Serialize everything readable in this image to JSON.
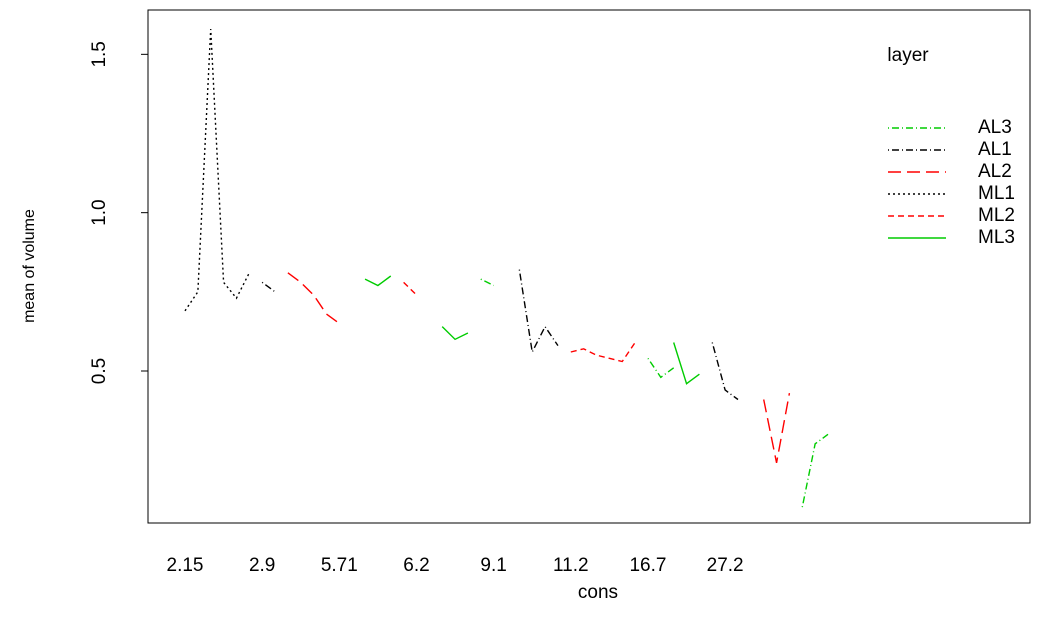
{
  "chart_data": {
    "type": "line",
    "xlabel": "cons",
    "ylabel": "mean of volume",
    "legend_title": "layer",
    "legend": "right",
    "categories": [
      "2.15",
      null,
      null,
      null,
      null,
      null,
      "2.9",
      null,
      null,
      null,
      null,
      null,
      "5.71",
      null,
      null,
      null,
      null,
      null,
      "6.2",
      null,
      null,
      null,
      null,
      null,
      "9.1",
      null,
      null,
      null,
      null,
      null,
      "11.2",
      null,
      null,
      null,
      null,
      null,
      "16.7",
      null,
      null,
      null,
      null,
      null,
      "27.2",
      null,
      null,
      null,
      null,
      null,
      null,
      null,
      null
    ],
    "ylim": [
      0.02,
      1.64
    ],
    "yticks": [
      0.5,
      {
        "value": 1.0,
        "label": "1.0"
      },
      1.5
    ],
    "series": [
      {
        "name": "AL3",
        "color": "#00cc00",
        "linestyle": "dotdash",
        "values": [
          null,
          null,
          null,
          null,
          null,
          null,
          null,
          null,
          null,
          null,
          null,
          null,
          null,
          null,
          null,
          null,
          null,
          null,
          null,
          null,
          null,
          null,
          null,
          0.79,
          0.77,
          null,
          null,
          null,
          null,
          null,
          null,
          null,
          null,
          null,
          null,
          null,
          0.54,
          0.48,
          0.51,
          null,
          null,
          null,
          null,
          null,
          null,
          null,
          null,
          null,
          0.07,
          0.27,
          0.3
        ]
      },
      {
        "name": "AL1",
        "color": "#000000",
        "linestyle": "dotdash",
        "values": [
          null,
          null,
          null,
          null,
          null,
          null,
          0.78,
          0.75,
          null,
          null,
          null,
          null,
          null,
          null,
          null,
          null,
          null,
          null,
          null,
          null,
          null,
          null,
          null,
          null,
          null,
          null,
          0.82,
          0.56,
          0.64,
          0.58,
          null,
          null,
          null,
          null,
          null,
          null,
          null,
          null,
          null,
          null,
          null,
          0.59,
          0.44,
          0.41,
          null,
          null,
          null,
          null,
          null,
          null,
          null
        ]
      },
      {
        "name": "AL2",
        "color": "#ff0000",
        "linestyle": "longdash",
        "values": [
          null,
          null,
          null,
          null,
          null,
          null,
          null,
          null,
          0.81,
          0.78,
          0.74,
          0.68,
          0.65,
          null,
          null,
          null,
          null,
          null,
          null,
          null,
          null,
          null,
          null,
          null,
          null,
          null,
          null,
          null,
          null,
          null,
          null,
          null,
          null,
          null,
          null,
          null,
          null,
          null,
          null,
          null,
          null,
          null,
          null,
          null,
          null,
          0.41,
          0.21,
          0.43,
          null,
          null,
          null
        ]
      },
      {
        "name": "ML1",
        "color": "#000000",
        "linestyle": "dotted",
        "values": [
          0.69,
          0.75,
          1.58,
          0.78,
          0.73,
          0.81,
          null,
          null,
          null,
          null,
          null,
          null,
          null,
          null,
          null,
          null,
          null,
          null,
          null,
          null,
          null,
          null,
          null,
          null,
          null,
          null,
          null,
          null,
          null,
          null,
          null,
          null,
          null,
          null,
          null,
          null,
          null,
          null,
          null,
          null,
          null,
          null,
          null,
          null,
          null,
          null,
          null,
          null,
          null,
          null,
          null
        ]
      },
      {
        "name": "ML2",
        "color": "#ff0000",
        "linestyle": "dashed",
        "values": [
          null,
          null,
          null,
          null,
          null,
          null,
          null,
          null,
          null,
          null,
          null,
          null,
          null,
          null,
          null,
          null,
          null,
          0.78,
          0.74,
          null,
          null,
          null,
          null,
          null,
          null,
          null,
          null,
          null,
          null,
          null,
          0.56,
          0.57,
          0.55,
          0.54,
          0.53,
          0.59,
          null,
          null,
          null,
          null,
          null,
          null,
          null,
          null,
          null,
          null,
          null,
          null,
          null,
          null,
          null
        ]
      },
      {
        "name": "ML3",
        "color": "#00cc00",
        "linestyle": "solid",
        "values": [
          null,
          null,
          null,
          null,
          null,
          null,
          null,
          null,
          null,
          null,
          null,
          null,
          null,
          null,
          0.79,
          0.77,
          0.8,
          null,
          null,
          null,
          0.64,
          0.6,
          0.62,
          null,
          null,
          null,
          null,
          null,
          null,
          null,
          null,
          null,
          null,
          null,
          null,
          null,
          null,
          null,
          0.59,
          0.46,
          0.49,
          null,
          null,
          null,
          null,
          null,
          null,
          null,
          null,
          null,
          null
        ]
      }
    ]
  }
}
